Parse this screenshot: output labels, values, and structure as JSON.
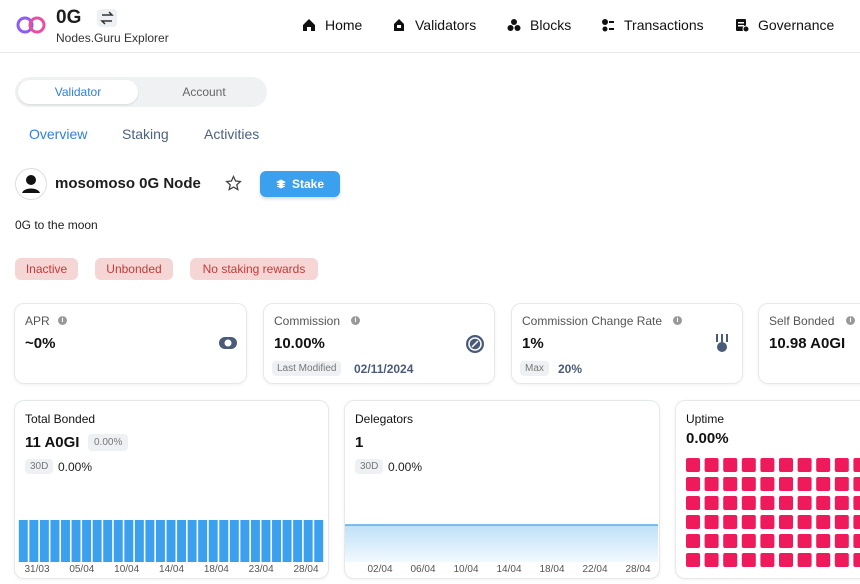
{
  "header": {
    "logo_text": "0G",
    "subtitle": "Nodes.Guru Explorer",
    "nav": [
      "Home",
      "Validators",
      "Blocks",
      "Transactions",
      "Governance"
    ]
  },
  "toggle": [
    "Validator",
    "Account"
  ],
  "tabs": [
    "Overview",
    "Staking",
    "Activities"
  ],
  "validator": {
    "name": "mosomoso 0G Node",
    "stake_button": "Stake",
    "description": "0G to the moon",
    "badges": [
      "Inactive",
      "Unbonded",
      "No staking rewards"
    ]
  },
  "cards": [
    {
      "label": "APR",
      "value": "~0%"
    },
    {
      "label": "Commission",
      "value": "10.00%",
      "meta_label": "Last Modified",
      "meta_value": "02/11/2024"
    },
    {
      "label": "Commission Change Rate",
      "value": "1%",
      "meta_label": "Max",
      "meta_value": "20%"
    },
    {
      "label": "Self Bonded",
      "value": "10.98 A0GI"
    }
  ],
  "total_bonded": {
    "label": "Total Bonded",
    "value": "11 A0GI",
    "change": "0.00%",
    "period": "30D",
    "period_change": "0.00%",
    "bars": [
      11,
      11,
      11,
      11,
      11,
      11,
      11,
      11,
      11,
      11,
      11,
      11,
      11,
      11,
      11,
      11,
      11,
      11,
      11,
      11,
      11,
      11,
      11,
      11,
      11,
      11,
      11,
      11,
      11
    ],
    "x_labels": [
      "31/03",
      "05/04",
      "10/04",
      "14/04",
      "18/04",
      "23/04",
      "28/04"
    ]
  },
  "delegators": {
    "label": "Delegators",
    "value": "1",
    "period": "30D",
    "period_change": "0.00%",
    "line": [
      1,
      1,
      1,
      1,
      1,
      1,
      1,
      1,
      1,
      1,
      1,
      1,
      1,
      1,
      1,
      1,
      1,
      1,
      1,
      1,
      1,
      1,
      1,
      1,
      1,
      1,
      1,
      1,
      1
    ],
    "x_labels": [
      "02/04",
      "06/04",
      "10/04",
      "14/04",
      "18/04",
      "22/04",
      "28/04"
    ]
  },
  "uptime": {
    "label": "Uptime",
    "value": "0.00%"
  }
}
